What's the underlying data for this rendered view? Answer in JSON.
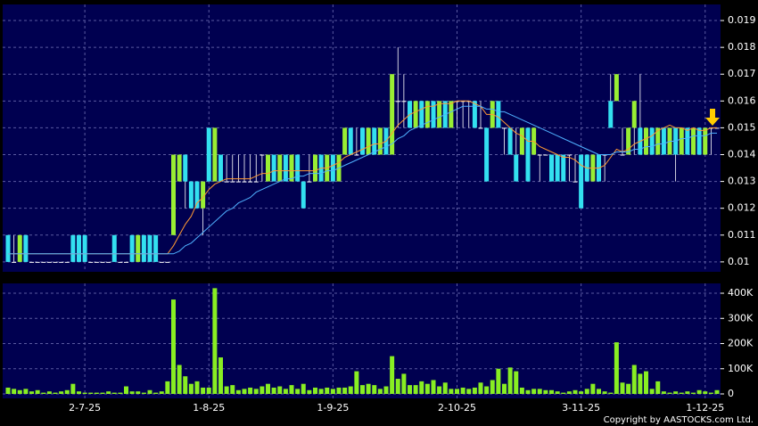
{
  "chart_data": {
    "type": "candlestick",
    "categories": [
      null,
      null,
      null,
      null,
      null,
      null,
      null,
      null,
      null,
      null,
      null,
      null,
      null,
      "2-7-25",
      null,
      null,
      null,
      null,
      null,
      null,
      null,
      null,
      null,
      null,
      null,
      null,
      null,
      null,
      null,
      null,
      null,
      null,
      null,
      null,
      "1-8-25",
      null,
      null,
      null,
      null,
      null,
      null,
      null,
      null,
      null,
      null,
      null,
      null,
      null,
      null,
      null,
      null,
      null,
      null,
      null,
      null,
      "1-9-25",
      null,
      null,
      null,
      null,
      null,
      null,
      null,
      null,
      null,
      null,
      null,
      null,
      null,
      null,
      null,
      null,
      null,
      null,
      null,
      null,
      "2-10-25",
      null,
      null,
      null,
      null,
      null,
      null,
      null,
      null,
      null,
      null,
      null,
      null,
      null,
      null,
      null,
      null,
      null,
      null,
      null,
      null,
      "3-11-25",
      null,
      null,
      null,
      null,
      null,
      null,
      null,
      null,
      null,
      null,
      null,
      null,
      null,
      null,
      null,
      null,
      null,
      null,
      null,
      null,
      "1-12-25",
      null,
      null
    ],
    "open": [
      0.011,
      0.01,
      0.01,
      0.011,
      0.01,
      0.01,
      0.01,
      0.01,
      0.01,
      0.01,
      0.01,
      0.011,
      0.011,
      0.011,
      0.01,
      0.01,
      0.01,
      0.01,
      0.011,
      0.01,
      0.01,
      0.011,
      0.01,
      0.011,
      0.011,
      0.011,
      0.01,
      0.01,
      0.011,
      0.013,
      0.014,
      0.013,
      0.013,
      0.012,
      0.015,
      0.013,
      0.014,
      0.013,
      0.013,
      0.013,
      0.013,
      0.013,
      0.013,
      0.014,
      0.013,
      0.014,
      0.013,
      0.014,
      0.013,
      0.014,
      0.013,
      0.013,
      0.013,
      0.014,
      0.013,
      0.014,
      0.013,
      0.014,
      0.015,
      0.014,
      0.015,
      0.014,
      0.015,
      0.014,
      0.015,
      0.014,
      0.016,
      0.016,
      0.016,
      0.015,
      0.016,
      0.015,
      0.016,
      0.015,
      0.016,
      0.015,
      0.016,
      0.016,
      0.016,
      0.016,
      0.015,
      0.015,
      0.015,
      0.016,
      0.015,
      0.015,
      0.014,
      0.014,
      0.015,
      0.014,
      0.014,
      0.014,
      0.014,
      0.014,
      0.014,
      0.014,
      0.013,
      0.014,
      0.014,
      0.013,
      0.014,
      0.014,
      0.016,
      0.016,
      0.014,
      0.014,
      0.015,
      0.015,
      0.014,
      0.015,
      0.014,
      0.015,
      0.014,
      0.015,
      0.014,
      0.015,
      0.014,
      0.015,
      0.014,
      0.015,
      0.015
    ],
    "high": [
      0.011,
      0.011,
      0.011,
      0.011,
      0.01,
      0.01,
      0.01,
      0.01,
      0.01,
      0.01,
      0.01,
      0.011,
      0.011,
      0.011,
      0.01,
      0.01,
      0.01,
      0.01,
      0.011,
      0.01,
      0.01,
      0.011,
      0.011,
      0.011,
      0.011,
      0.011,
      0.01,
      0.01,
      0.014,
      0.014,
      0.014,
      0.013,
      0.013,
      0.013,
      0.015,
      0.015,
      0.014,
      0.014,
      0.014,
      0.014,
      0.014,
      0.014,
      0.014,
      0.014,
      0.014,
      0.014,
      0.014,
      0.014,
      0.014,
      0.014,
      0.013,
      0.014,
      0.014,
      0.014,
      0.014,
      0.014,
      0.014,
      0.015,
      0.015,
      0.015,
      0.015,
      0.015,
      0.015,
      0.015,
      0.015,
      0.017,
      0.018,
      0.017,
      0.016,
      0.016,
      0.016,
      0.016,
      0.016,
      0.016,
      0.016,
      0.016,
      0.016,
      0.016,
      0.016,
      0.016,
      0.016,
      0.015,
      0.016,
      0.016,
      0.015,
      0.015,
      0.015,
      0.015,
      0.015,
      0.015,
      0.014,
      0.014,
      0.014,
      0.014,
      0.014,
      0.014,
      0.014,
      0.014,
      0.014,
      0.014,
      0.014,
      0.014,
      0.017,
      0.017,
      0.015,
      0.015,
      0.016,
      0.017,
      0.015,
      0.015,
      0.015,
      0.015,
      0.015,
      0.015,
      0.015,
      0.015,
      0.015,
      0.015,
      0.015,
      0.015,
      0.015
    ],
    "low": [
      0.01,
      0.01,
      0.01,
      0.01,
      0.01,
      0.01,
      0.01,
      0.01,
      0.01,
      0.01,
      0.01,
      0.01,
      0.01,
      0.01,
      0.01,
      0.01,
      0.01,
      0.01,
      0.01,
      0.01,
      0.01,
      0.01,
      0.01,
      0.01,
      0.01,
      0.01,
      0.01,
      0.01,
      0.011,
      0.013,
      0.012,
      0.012,
      0.012,
      0.011,
      0.013,
      0.013,
      0.013,
      0.013,
      0.013,
      0.013,
      0.013,
      0.013,
      0.013,
      0.013,
      0.013,
      0.013,
      0.013,
      0.013,
      0.013,
      0.013,
      0.012,
      0.013,
      0.013,
      0.013,
      0.013,
      0.013,
      0.013,
      0.014,
      0.014,
      0.014,
      0.014,
      0.014,
      0.014,
      0.014,
      0.014,
      0.014,
      0.015,
      0.015,
      0.015,
      0.015,
      0.015,
      0.015,
      0.015,
      0.015,
      0.015,
      0.015,
      0.015,
      0.015,
      0.015,
      0.015,
      0.015,
      0.013,
      0.015,
      0.015,
      0.014,
      0.014,
      0.013,
      0.014,
      0.013,
      0.014,
      0.013,
      0.014,
      0.013,
      0.013,
      0.013,
      0.013,
      0.013,
      0.012,
      0.013,
      0.013,
      0.013,
      0.013,
      0.015,
      0.016,
      0.014,
      0.014,
      0.014,
      0.014,
      0.014,
      0.014,
      0.014,
      0.014,
      0.014,
      0.013,
      0.014,
      0.014,
      0.014,
      0.014,
      0.014,
      0.014,
      0.015
    ],
    "close": [
      0.01,
      0.01,
      0.011,
      0.01,
      0.01,
      0.01,
      0.01,
      0.01,
      0.01,
      0.01,
      0.01,
      0.01,
      0.01,
      0.01,
      0.01,
      0.01,
      0.01,
      0.01,
      0.01,
      0.01,
      0.01,
      0.01,
      0.011,
      0.01,
      0.01,
      0.01,
      0.01,
      0.01,
      0.014,
      0.014,
      0.013,
      0.012,
      0.012,
      0.013,
      0.013,
      0.015,
      0.013,
      0.013,
      0.013,
      0.013,
      0.013,
      0.013,
      0.013,
      0.014,
      0.014,
      0.013,
      0.014,
      0.013,
      0.014,
      0.013,
      0.012,
      0.013,
      0.014,
      0.013,
      0.014,
      0.013,
      0.014,
      0.015,
      0.014,
      0.014,
      0.014,
      0.015,
      0.014,
      0.015,
      0.014,
      0.017,
      0.016,
      0.016,
      0.015,
      0.016,
      0.015,
      0.016,
      0.015,
      0.016,
      0.015,
      0.016,
      0.016,
      0.016,
      0.016,
      0.015,
      0.015,
      0.013,
      0.016,
      0.015,
      0.015,
      0.014,
      0.013,
      0.015,
      0.013,
      0.015,
      0.014,
      0.014,
      0.013,
      0.013,
      0.013,
      0.014,
      0.013,
      0.012,
      0.013,
      0.014,
      0.013,
      0.014,
      0.015,
      0.017,
      0.014,
      0.015,
      0.016,
      0.014,
      0.015,
      0.014,
      0.015,
      0.014,
      0.015,
      0.014,
      0.015,
      0.014,
      0.015,
      0.014,
      0.015,
      0.015,
      0.015
    ],
    "ma_short": [
      0.0103,
      0.0103,
      0.0103,
      0.0103,
      0.0103,
      0.0103,
      0.0103,
      0.0103,
      0.0103,
      0.0103,
      0.0103,
      0.0103,
      0.0103,
      0.0103,
      0.0103,
      0.0103,
      0.0103,
      0.0103,
      0.0103,
      0.0103,
      0.0103,
      0.0103,
      0.0103,
      0.0103,
      0.0103,
      0.0103,
      0.0103,
      0.0103,
      0.0106,
      0.011,
      0.0114,
      0.0117,
      0.0122,
      0.0124,
      0.0127,
      0.0129,
      0.013,
      0.0131,
      0.0131,
      0.0131,
      0.0131,
      0.0131,
      0.0132,
      0.0133,
      0.0133,
      0.0134,
      0.0134,
      0.0134,
      0.0134,
      0.0134,
      0.0134,
      0.0134,
      0.0134,
      0.0135,
      0.0135,
      0.0136,
      0.0137,
      0.0139,
      0.014,
      0.0141,
      0.0142,
      0.0143,
      0.0144,
      0.0144,
      0.0145,
      0.0148,
      0.0151,
      0.0153,
      0.0155,
      0.0156,
      0.0157,
      0.0158,
      0.0158,
      0.0159,
      0.0159,
      0.0159,
      0.016,
      0.016,
      0.016,
      0.0159,
      0.0158,
      0.0155,
      0.0155,
      0.0154,
      0.0152,
      0.015,
      0.0148,
      0.0147,
      0.0145,
      0.0145,
      0.0143,
      0.0142,
      0.0141,
      0.014,
      0.0139,
      0.0139,
      0.0138,
      0.0136,
      0.0135,
      0.0135,
      0.0135,
      0.0136,
      0.0139,
      0.0142,
      0.0141,
      0.0142,
      0.0144,
      0.0145,
      0.0146,
      0.0147,
      0.0149,
      0.015,
      0.0151,
      0.015,
      0.015,
      0.0149,
      0.015,
      0.0149,
      0.0149,
      0.015,
      0.015
    ],
    "ma_long": [
      0.0103,
      0.0103,
      0.0103,
      0.0103,
      0.0103,
      0.0103,
      0.0103,
      0.0103,
      0.0103,
      0.0103,
      0.0103,
      0.0103,
      0.0103,
      0.0103,
      0.0103,
      0.0103,
      0.0103,
      0.0103,
      0.0103,
      0.0103,
      0.0103,
      0.0103,
      0.0103,
      0.0103,
      0.0103,
      0.0103,
      0.0103,
      0.0103,
      0.0103,
      0.0104,
      0.0106,
      0.0107,
      0.0109,
      0.0111,
      0.0113,
      0.0115,
      0.0117,
      0.0119,
      0.012,
      0.0122,
      0.0123,
      0.0124,
      0.0126,
      0.0127,
      0.0128,
      0.0129,
      0.013,
      0.0131,
      0.0131,
      0.0132,
      0.0132,
      0.0133,
      0.0133,
      0.0133,
      0.0134,
      0.0134,
      0.0135,
      0.0136,
      0.0137,
      0.0138,
      0.0139,
      0.014,
      0.0141,
      0.0142,
      0.0143,
      0.0144,
      0.0146,
      0.0147,
      0.0149,
      0.015,
      0.0151,
      0.0152,
      0.0153,
      0.0154,
      0.0155,
      0.0156,
      0.0157,
      0.0158,
      0.0158,
      0.0158,
      0.0158,
      0.0157,
      0.0157,
      0.0156,
      0.0156,
      0.0155,
      0.0154,
      0.0153,
      0.0152,
      0.0151,
      0.015,
      0.0149,
      0.0148,
      0.0147,
      0.0146,
      0.0145,
      0.0144,
      0.0143,
      0.0142,
      0.0141,
      0.014,
      0.014,
      0.014,
      0.0141,
      0.0141,
      0.0141,
      0.0142,
      0.0142,
      0.0143,
      0.0143,
      0.0144,
      0.0144,
      0.0145,
      0.0145,
      0.0146,
      0.0146,
      0.0147,
      0.0147,
      0.0147,
      0.0148,
      0.0148
    ],
    "volume": [
      25000,
      20000,
      15000,
      20000,
      10000,
      15000,
      5000,
      10000,
      5000,
      10000,
      15000,
      40000,
      10000,
      5000,
      5000,
      5000,
      5000,
      10000,
      5000,
      5000,
      30000,
      10000,
      10000,
      5000,
      15000,
      5000,
      10000,
      50000,
      375000,
      115000,
      70000,
      40000,
      50000,
      25000,
      25000,
      420000,
      145000,
      30000,
      35000,
      15000,
      20000,
      25000,
      20000,
      30000,
      40000,
      25000,
      30000,
      20000,
      35000,
      20000,
      40000,
      15000,
      25000,
      20000,
      25000,
      20000,
      25000,
      25000,
      30000,
      90000,
      35000,
      40000,
      35000,
      20000,
      30000,
      150000,
      60000,
      80000,
      35000,
      35000,
      50000,
      40000,
      55000,
      30000,
      45000,
      20000,
      20000,
      25000,
      20000,
      25000,
      45000,
      30000,
      55000,
      100000,
      40000,
      105000,
      90000,
      25000,
      15000,
      20000,
      20000,
      15000,
      15000,
      10000,
      5000,
      10000,
      15000,
      10000,
      20000,
      40000,
      20000,
      10000,
      5000,
      205000,
      45000,
      40000,
      115000,
      80000,
      90000,
      20000,
      50000,
      10000,
      5000,
      10000,
      5000,
      10000,
      5000,
      15000,
      10000,
      5000,
      15000
    ],
    "up_color": "#99ee33",
    "down_color": "#33e0f0",
    "ma_short_color": "#ff9933",
    "ma_long_color": "#4fb0ff",
    "volume_color": "#88ee22",
    "ylim": [
      0.00963,
      0.0196
    ],
    "yticks": [
      0.01,
      0.011,
      0.012,
      0.013,
      0.014,
      0.015,
      0.016,
      0.017,
      0.018,
      0.019
    ],
    "y2lim": [
      -17700,
      439000
    ],
    "y2ticks": [
      0,
      {
        "value": 100000,
        "label": "100K"
      },
      {
        "value": 200000,
        "label": "200K"
      },
      {
        "value": 300000,
        "label": "300K"
      },
      {
        "value": 400000,
        "label": "400K"
      }
    ],
    "grid": true,
    "copyright": "Copyright by AASTOCKS.com Ltd."
  }
}
